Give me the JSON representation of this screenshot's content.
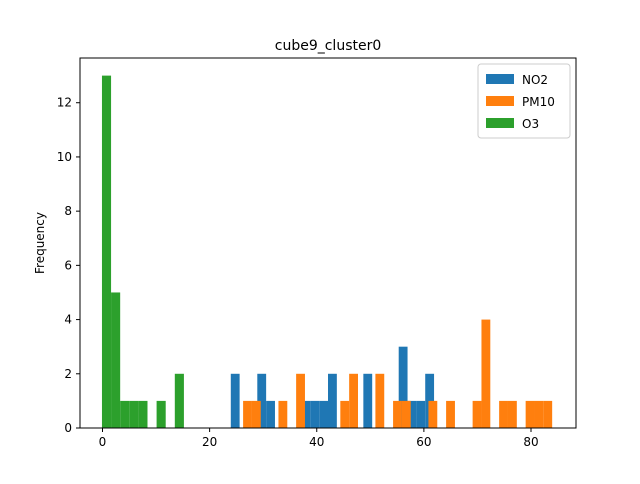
{
  "chart_data": {
    "type": "bar",
    "subtype": "histogram",
    "title": "cube9_cluster0",
    "xlabel": "",
    "ylabel": "Frequency",
    "xlim": [
      -4.2,
      88.4
    ],
    "ylim": [
      0,
      13.65
    ],
    "xticks": [
      0,
      20,
      40,
      60,
      80
    ],
    "yticks": [
      0,
      2,
      4,
      6,
      8,
      10,
      12
    ],
    "legend_position": "top-right",
    "grid": false,
    "series": [
      {
        "name": "NO2",
        "color": "#1f77b4",
        "bins": [
          {
            "x0": 23.95,
            "x1": 25.6,
            "count": 2
          },
          {
            "x0": 28.9,
            "x1": 30.55,
            "count": 2
          },
          {
            "x0": 30.55,
            "x1": 32.2,
            "count": 1
          },
          {
            "x0": 37.15,
            "x1": 38.8,
            "count": 1
          },
          {
            "x0": 38.8,
            "x1": 40.45,
            "count": 1
          },
          {
            "x0": 40.45,
            "x1": 42.1,
            "count": 1
          },
          {
            "x0": 42.1,
            "x1": 43.75,
            "count": 2
          },
          {
            "x0": 48.7,
            "x1": 50.35,
            "count": 2
          },
          {
            "x0": 55.3,
            "x1": 56.95,
            "count": 3
          },
          {
            "x0": 56.95,
            "x1": 58.6,
            "count": 1
          },
          {
            "x0": 58.6,
            "x1": 60.25,
            "count": 1
          },
          {
            "x0": 60.25,
            "x1": 61.9,
            "count": 2
          }
        ]
      },
      {
        "name": "PM10",
        "color": "#ff7f0e",
        "bins": [
          {
            "x0": 26.25,
            "x1": 27.9,
            "count": 1
          },
          {
            "x0": 27.9,
            "x1": 29.55,
            "count": 1
          },
          {
            "x0": 32.85,
            "x1": 34.5,
            "count": 1
          },
          {
            "x0": 36.15,
            "x1": 37.8,
            "count": 2
          },
          {
            "x0": 44.4,
            "x1": 46.05,
            "count": 1
          },
          {
            "x0": 46.05,
            "x1": 47.7,
            "count": 2
          },
          {
            "x0": 50.95,
            "x1": 52.6,
            "count": 2
          },
          {
            "x0": 54.25,
            "x1": 55.9,
            "count": 1
          },
          {
            "x0": 55.9,
            "x1": 57.55,
            "count": 1
          },
          {
            "x0": 60.85,
            "x1": 62.5,
            "count": 1
          },
          {
            "x0": 64.15,
            "x1": 65.8,
            "count": 1
          },
          {
            "x0": 69.1,
            "x1": 70.75,
            "count": 1
          },
          {
            "x0": 70.75,
            "x1": 72.4,
            "count": 4
          },
          {
            "x0": 74.05,
            "x1": 75.7,
            "count": 1
          },
          {
            "x0": 75.7,
            "x1": 77.35,
            "count": 1
          },
          {
            "x0": 79.0,
            "x1": 80.65,
            "count": 1
          },
          {
            "x0": 80.65,
            "x1": 82.3,
            "count": 1
          },
          {
            "x0": 82.3,
            "x1": 83.95,
            "count": 1
          }
        ]
      },
      {
        "name": "O3",
        "color": "#2ca02c",
        "bins": [
          {
            "x0": -0.1,
            "x1": 1.6,
            "count": 13
          },
          {
            "x0": 1.6,
            "x1": 3.3,
            "count": 5
          },
          {
            "x0": 3.3,
            "x1": 5.0,
            "count": 1
          },
          {
            "x0": 5.0,
            "x1": 6.7,
            "count": 1
          },
          {
            "x0": 6.7,
            "x1": 8.4,
            "count": 1
          },
          {
            "x0": 10.1,
            "x1": 11.8,
            "count": 1
          },
          {
            "x0": 13.5,
            "x1": 15.2,
            "count": 2
          }
        ]
      }
    ]
  }
}
